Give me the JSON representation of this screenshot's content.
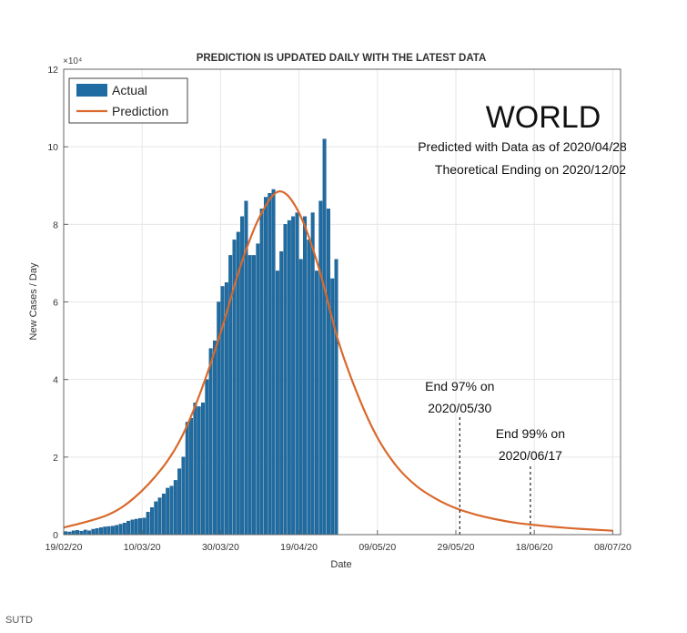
{
  "chart_data": {
    "type": "bar",
    "title": "PREDICTION IS UPDATED DAILY WITH THE LATEST DATA",
    "xlabel": "Date",
    "ylabel": "New Cases / Day",
    "y_exponent_label": "×10⁴",
    "ylim": [
      0,
      12
    ],
    "yticks": [
      0,
      2,
      4,
      6,
      8,
      10,
      12
    ],
    "xlim": [
      "2020-02-19",
      "2020-07-10"
    ],
    "xticks": [
      {
        "date": "2020-02-19",
        "label": "19/02/20"
      },
      {
        "date": "2020-03-10",
        "label": "10/03/20"
      },
      {
        "date": "2020-03-30",
        "label": "30/03/20"
      },
      {
        "date": "2020-04-19",
        "label": "19/04/20"
      },
      {
        "date": "2020-05-09",
        "label": "09/05/20"
      },
      {
        "date": "2020-05-29",
        "label": "29/05/20"
      },
      {
        "date": "2020-06-18",
        "label": "18/06/20"
      },
      {
        "date": "2020-07-08",
        "label": "08/07/20"
      }
    ],
    "grid": true,
    "legend_position": "top-left",
    "region_label": "WORLD",
    "info_lines": [
      "Predicted with Data as of 2020/04/28",
      "Theoretical Ending on 2020/12/02"
    ],
    "colors": {
      "actual": "#1f6ca3",
      "prediction": "#d9692c"
    },
    "series": [
      {
        "name": "Actual",
        "type": "bar",
        "start_date": "2020-02-19",
        "x": [
          "2020-02-19",
          "2020-02-20",
          "2020-02-21",
          "2020-02-22",
          "2020-02-23",
          "2020-02-24",
          "2020-02-25",
          "2020-02-26",
          "2020-02-27",
          "2020-02-28",
          "2020-02-29",
          "2020-03-01",
          "2020-03-02",
          "2020-03-03",
          "2020-03-04",
          "2020-03-05",
          "2020-03-06",
          "2020-03-07",
          "2020-03-08",
          "2020-03-09",
          "2020-03-10",
          "2020-03-11",
          "2020-03-12",
          "2020-03-13",
          "2020-03-14",
          "2020-03-15",
          "2020-03-16",
          "2020-03-17",
          "2020-03-18",
          "2020-03-19",
          "2020-03-20",
          "2020-03-21",
          "2020-03-22",
          "2020-03-23",
          "2020-03-24",
          "2020-03-25",
          "2020-03-26",
          "2020-03-27",
          "2020-03-28",
          "2020-03-29",
          "2020-03-30",
          "2020-03-31",
          "2020-04-01",
          "2020-04-02",
          "2020-04-03",
          "2020-04-04",
          "2020-04-05",
          "2020-04-06",
          "2020-04-07",
          "2020-04-08",
          "2020-04-09",
          "2020-04-10",
          "2020-04-11",
          "2020-04-12",
          "2020-04-13",
          "2020-04-14",
          "2020-04-15",
          "2020-04-16",
          "2020-04-17",
          "2020-04-18",
          "2020-04-19",
          "2020-04-20",
          "2020-04-21",
          "2020-04-22",
          "2020-04-23",
          "2020-04-24",
          "2020-04-25",
          "2020-04-26",
          "2020-04-27",
          "2020-04-28"
        ],
        "values": [
          0.08,
          0.07,
          0.1,
          0.11,
          0.09,
          0.12,
          0.1,
          0.14,
          0.16,
          0.18,
          0.2,
          0.21,
          0.22,
          0.24,
          0.27,
          0.3,
          0.35,
          0.38,
          0.4,
          0.42,
          0.43,
          0.58,
          0.7,
          0.85,
          0.95,
          1.05,
          1.2,
          1.25,
          1.4,
          1.7,
          2.0,
          2.9,
          3.0,
          3.4,
          3.3,
          3.4,
          4.0,
          4.8,
          5.0,
          6.0,
          6.4,
          6.5,
          7.2,
          7.6,
          7.8,
          8.2,
          8.6,
          7.2,
          7.2,
          7.5,
          8.4,
          8.7,
          8.8,
          8.9,
          6.8,
          7.3,
          8.0,
          8.1,
          8.2,
          8.3,
          7.1,
          8.2,
          7.6,
          8.3,
          6.8,
          8.6,
          10.2,
          8.4,
          6.6,
          7.1
        ]
      },
      {
        "name": "Prediction",
        "type": "line",
        "x": [
          "2020-02-19",
          "2020-03-01",
          "2020-03-08",
          "2020-03-15",
          "2020-03-20",
          "2020-03-25",
          "2020-03-30",
          "2020-04-04",
          "2020-04-09",
          "2020-04-14",
          "2020-04-19",
          "2020-04-24",
          "2020-04-29",
          "2020-05-04",
          "2020-05-09",
          "2020-05-14",
          "2020-05-19",
          "2020-05-24",
          "2020-05-29",
          "2020-06-03",
          "2020-06-08",
          "2020-06-13",
          "2020-06-18",
          "2020-06-23",
          "2020-06-28",
          "2020-07-03",
          "2020-07-08"
        ],
        "values": [
          0.18,
          0.5,
          0.95,
          1.7,
          2.5,
          3.7,
          5.2,
          6.9,
          8.2,
          8.85,
          8.3,
          6.9,
          5.0,
          3.6,
          2.5,
          1.75,
          1.25,
          0.92,
          0.68,
          0.52,
          0.4,
          0.31,
          0.25,
          0.2,
          0.16,
          0.13,
          0.1
        ]
      }
    ],
    "annotations": [
      {
        "date": "2020-05-30",
        "value": 0,
        "lines": [
          "End 97% on",
          "2020/05/30"
        ]
      },
      {
        "date": "2020-06-17",
        "value": 0,
        "lines": [
          "End 99% on",
          "2020/06/17"
        ]
      }
    ]
  },
  "footer": {
    "credit": "SUTD"
  }
}
